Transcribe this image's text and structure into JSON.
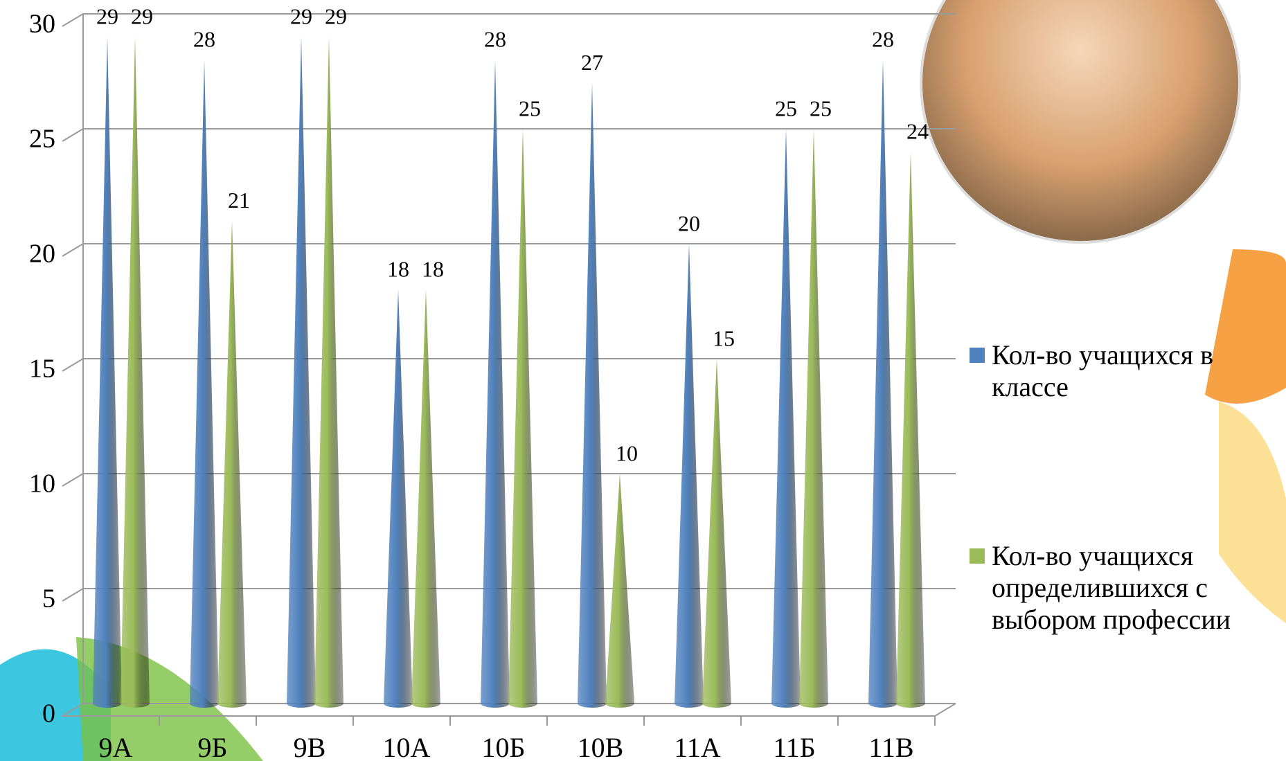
{
  "chart_data": {
    "type": "cone",
    "categories": [
      "9А",
      "9Б",
      "9В",
      "10А",
      "10Б",
      "10В",
      "11А",
      "11Б",
      "11В"
    ],
    "series": [
      {
        "name": "Кол-во учащихся в классе",
        "color": "#4f81bd",
        "values": [
          29,
          28,
          29,
          18,
          28,
          27,
          20,
          25,
          28
        ]
      },
      {
        "name": "Кол-во учащихся определившихся с выбором профессии",
        "color": "#9bbb59",
        "values": [
          29,
          21,
          29,
          18,
          25,
          10,
          15,
          25,
          24
        ]
      }
    ],
    "ylim": [
      0,
      30
    ],
    "yticks": [
      0,
      5,
      10,
      15,
      20,
      25,
      30
    ],
    "grid": true,
    "legend": "right"
  }
}
